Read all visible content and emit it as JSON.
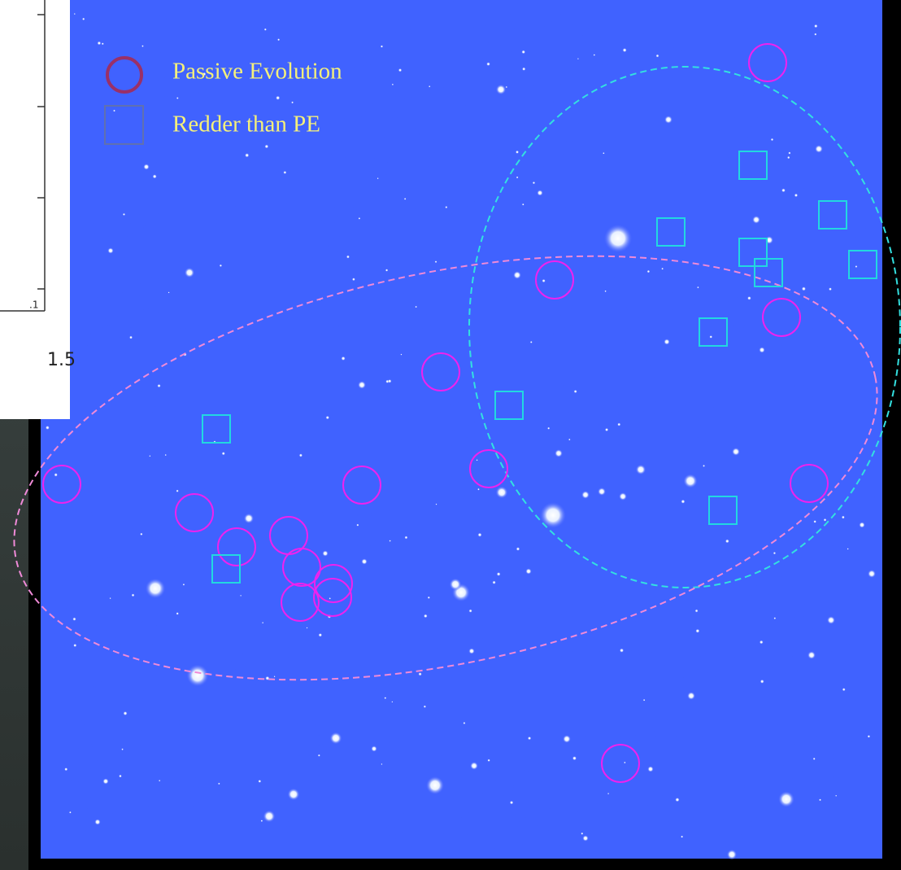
{
  "legend": {
    "items": [
      {
        "label": "Passive Evolution"
      },
      {
        "label": "Redder than PE"
      }
    ]
  },
  "background_plot": {
    "tick_label_small": ".1",
    "tick_label_large": "1.5"
  }
}
